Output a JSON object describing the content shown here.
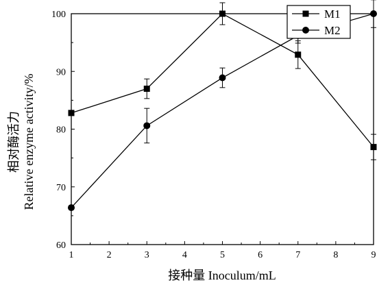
{
  "chart_data": {
    "type": "line",
    "title": "",
    "xlabel": "接种量 Inoculum/mL",
    "ylabel_lines": [
      "相对酶活力",
      "Relative enzyme activity/%"
    ],
    "xlim": [
      1,
      9
    ],
    "ylim": [
      60,
      100
    ],
    "x_ticks": [
      1,
      2,
      3,
      4,
      5,
      6,
      7,
      8,
      9
    ],
    "y_ticks": [
      60,
      70,
      80,
      90,
      100
    ],
    "legend_position": "top-right",
    "grid": false,
    "series": [
      {
        "name": "M1",
        "marker": "square",
        "color": "#000000",
        "x": [
          1,
          3,
          5,
          7,
          9
        ],
        "y": [
          82.8,
          87.0,
          100.0,
          92.9,
          76.9
        ],
        "error": [
          0,
          1.7,
          1.9,
          2.4,
          2.2
        ]
      },
      {
        "name": "M2",
        "marker": "circle",
        "color": "#000000",
        "x": [
          1,
          3,
          5,
          7,
          9
        ],
        "y": [
          66.4,
          80.6,
          88.9,
          96.2,
          100.0
        ],
        "error": [
          0,
          3.0,
          1.7,
          1.3,
          2.4
        ]
      }
    ]
  }
}
